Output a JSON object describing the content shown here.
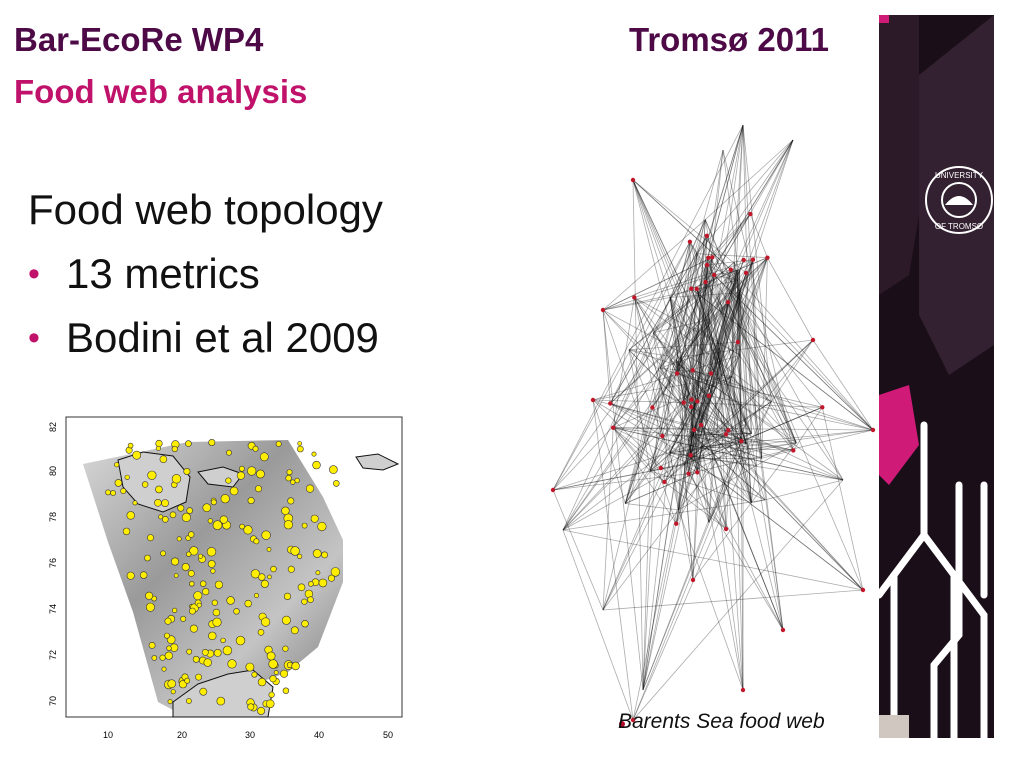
{
  "header": {
    "title": "Bar-EcoRe WP4",
    "subtitle": "Food web analysis",
    "right": "Tromsø 2011"
  },
  "content": {
    "heading": "Food web topology",
    "bullets": [
      "13 metrics",
      "Bodini et al 2009"
    ]
  },
  "map": {
    "y_ticks": [
      "70",
      "72",
      "74",
      "76",
      "78",
      "80",
      "82"
    ],
    "x_ticks": [
      "10",
      "20",
      "30",
      "40",
      "50"
    ],
    "point_color": "#ffee00"
  },
  "foodweb": {
    "caption": "Barents Sea food web",
    "node_color": "#c0182a"
  },
  "logo": {
    "text_top": "UNIVERSITY",
    "text_bottom": "OF TROMSØ"
  },
  "colors": {
    "title": "#4d0a47",
    "accent": "#c0126b"
  }
}
